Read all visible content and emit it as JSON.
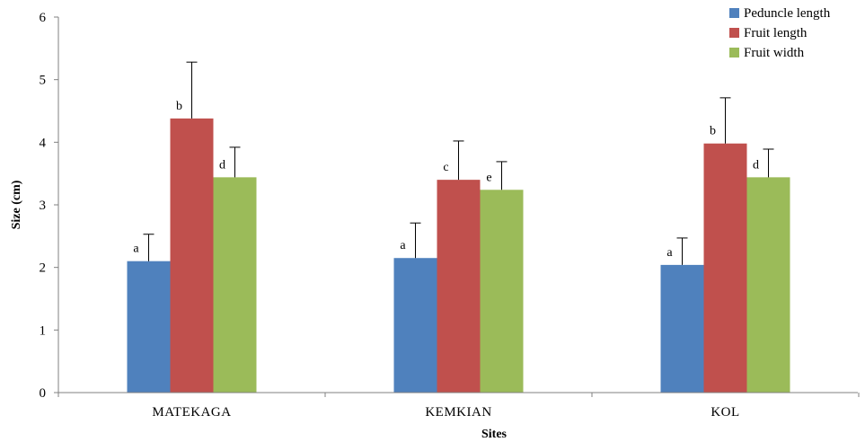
{
  "chart_data": {
    "type": "bar",
    "title": "",
    "xlabel": "Sites",
    "ylabel": "Size (cm)",
    "ylim": [
      0,
      6
    ],
    "yticks": [
      0,
      1,
      2,
      3,
      4,
      5,
      6
    ],
    "categories": [
      "MATEKAGA",
      "KEMKIAN",
      "KOL"
    ],
    "legend_position": "top-right",
    "grid": false,
    "series": [
      {
        "name": "Peduncle length",
        "color": "#4f81bd",
        "values": [
          2.1,
          2.15,
          2.04
        ],
        "errors": [
          0.43,
          0.56,
          0.43
        ],
        "labels": [
          "a",
          "a",
          "a"
        ]
      },
      {
        "name": "Fruit length",
        "color": "#c0504d",
        "values": [
          4.38,
          3.4,
          3.98
        ],
        "errors": [
          0.9,
          0.62,
          0.73
        ],
        "labels": [
          "b",
          "c",
          "b"
        ]
      },
      {
        "name": "Fruit width",
        "color": "#9bbb59",
        "values": [
          3.44,
          3.24,
          3.44
        ],
        "errors": [
          0.48,
          0.45,
          0.45
        ],
        "labels": [
          "d",
          "e",
          "d"
        ]
      }
    ]
  }
}
